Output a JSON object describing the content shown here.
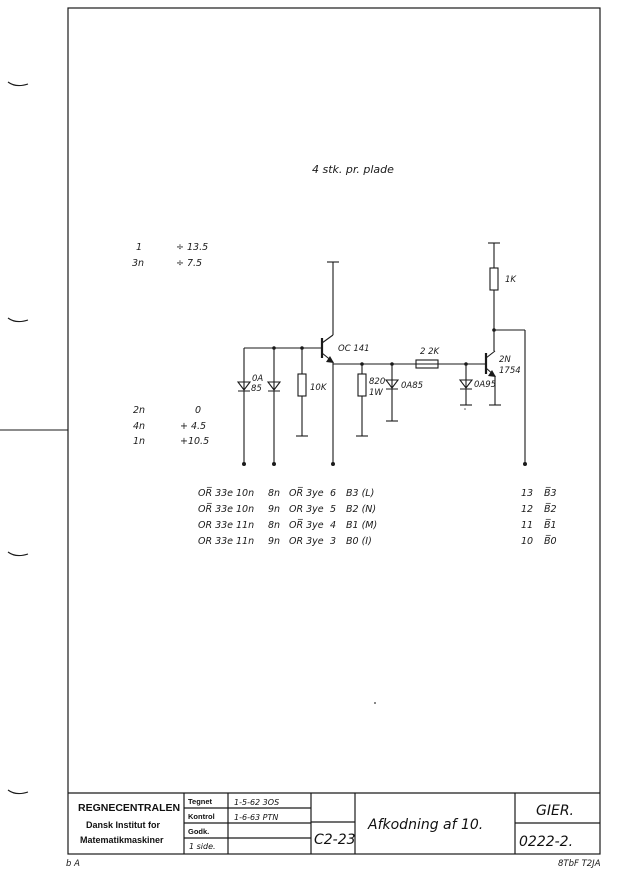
{
  "note": "4 stk. pr. plade",
  "supply_legend": [
    {
      "pin": "1",
      "value": "÷ 13.5"
    },
    {
      "pin": "3n",
      "value": "÷ 7.5"
    }
  ],
  "ground_legend": [
    {
      "pin": "2n",
      "value": "0"
    },
    {
      "pin": "4n",
      "value": "+ 4.5"
    },
    {
      "pin": "1n",
      "value": "+10.5"
    }
  ],
  "components": {
    "diode_left": "0A",
    "diode_left_2": "85",
    "r_base": "10K",
    "q1": "OC 141",
    "r_emitter": "820",
    "r_emitter_w": "1W",
    "diode_mid": "0A85",
    "r_series": "2 2K",
    "r_collector": "1K",
    "q2": "2N",
    "q2_2": "1754",
    "diode_right": "0A95"
  },
  "connection_rows": [
    {
      "c1": "OR̅ 33e",
      "c2": "10n",
      "c3": "8n",
      "c4": "OR̅ 3ye",
      "c5": "6",
      "c6": "B3 (L)"
    },
    {
      "c1": "OR̅ 33e",
      "c2": "10n",
      "c3": "9n",
      "c4": "OR 3ye",
      "c5": "5",
      "c6": "B2 (N)"
    },
    {
      "c1": "OR 33e",
      "c2": "11n",
      "c3": "8n",
      "c4": "OR̅ 3ye",
      "c5": "4",
      "c6": "B1 (M)"
    },
    {
      "c1": "OR 33e",
      "c2": "11n",
      "c3": "9n",
      "c4": "OR 3ye",
      "c5": "3",
      "c6": "B0 (I)"
    }
  ],
  "output_rows": [
    {
      "pin": "13",
      "sig": "B̅3"
    },
    {
      "pin": "12",
      "sig": "B̅2"
    },
    {
      "pin": "11",
      "sig": "B̅1"
    },
    {
      "pin": "10",
      "sig": "B̅0"
    }
  ],
  "title_block": {
    "org1": "REGNECENTRALEN",
    "org2": "Dansk Institut for",
    "org3": "Matematikmaskiner",
    "tegnet_lbl": "Tegnet",
    "tegnet_val": "1-5-62 3OS",
    "kontrol_lbl": "Kontrol",
    "kontrol_val": "1-6-63 PTN",
    "godk_lbl": "Godk.",
    "side_lbl": "1 side.",
    "code": "C2-23",
    "title": "Afkodning af 10.",
    "machine": "GIER.",
    "drawing_no": "0222-2."
  },
  "footer_left": "b A",
  "footer_right": "8TbF T2JA"
}
